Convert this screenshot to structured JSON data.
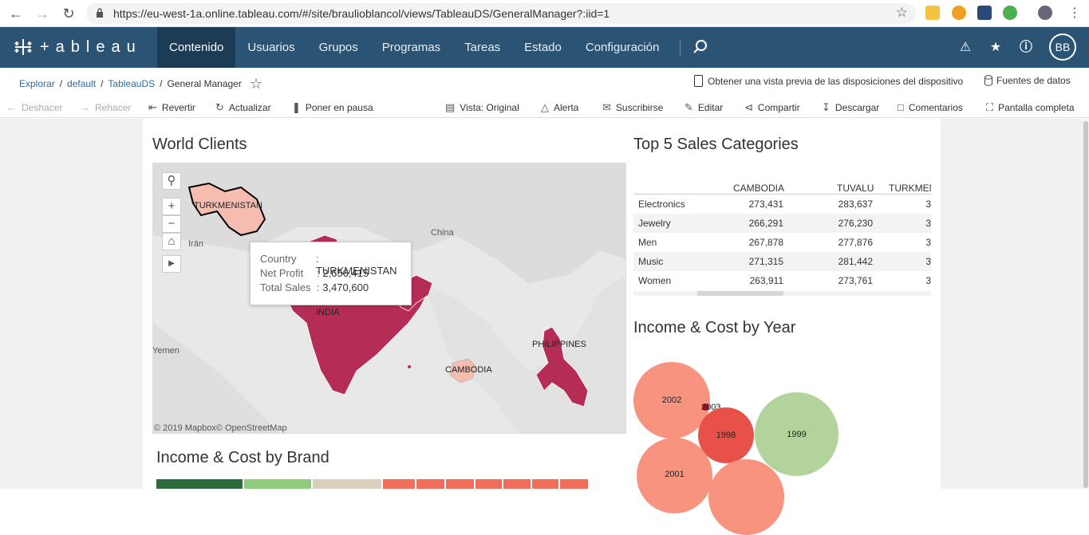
{
  "browser": {
    "url": "https://eu-west-1a.online.tableau.com/#/site/braulioblancol/views/TableauDS/GeneralManager?:iid=1"
  },
  "header": {
    "logo_text": "+ableau",
    "menu": [
      {
        "label": "Contenido"
      },
      {
        "label": "Usuarios"
      },
      {
        "label": "Grupos"
      },
      {
        "label": "Programas"
      },
      {
        "label": "Tareas"
      },
      {
        "label": "Estado"
      },
      {
        "label": "Configuración"
      }
    ],
    "avatar": "BB"
  },
  "breadcrumb": {
    "items": [
      "Explorar",
      "default",
      "TableauDS"
    ],
    "current": "General Manager"
  },
  "preview_label": "Obtener una vista previa de las disposiciones del dispositivo",
  "datasources_label": "Fuentes de datos",
  "toolbar": {
    "undo": "Deshacer",
    "redo": "Rehacer",
    "revert": "Revertir",
    "refresh": "Actualizar",
    "pause": "Poner en pausa",
    "view": "Vista: Original",
    "alert": "Alerta",
    "subscribe": "Suscribirse",
    "edit": "Editar",
    "share": "Compartir",
    "download": "Descargar",
    "comments": "Comentarios",
    "fullscreen": "Pantalla completa"
  },
  "map": {
    "title": "World Clients",
    "labels": {
      "turkmenistan": "TURKMENISTAN",
      "iran": "Irán",
      "china": "China",
      "india": "INDIA",
      "yemen": "Yemen",
      "cambodia": "CAMBODIA",
      "philippines": "PHILIPPINES"
    },
    "tooltip": {
      "country_k": "Country",
      "country_v": "TURKMENISTAN",
      "profit_k": "Net Profit",
      "profit_v": "2,656,415",
      "sales_k": "Total Sales",
      "sales_v": "3,470,600"
    },
    "attribution": "© 2019 Mapbox© OpenStreetMap"
  },
  "top5": {
    "title": "Top 5 Sales Categories",
    "columns": [
      "CAMBODIA",
      "TUVALU",
      "TURKMEN"
    ],
    "rows": [
      {
        "cat": "Electronics",
        "c1": "273,431",
        "c2": "283,637",
        "c3": "3"
      },
      {
        "cat": "Jewelry",
        "c1": "266,291",
        "c2": "276,230",
        "c3": "3"
      },
      {
        "cat": "Men",
        "c1": "267,878",
        "c2": "277,876",
        "c3": "3"
      },
      {
        "cat": "Music",
        "c1": "271,315",
        "c2": "281,442",
        "c3": "3"
      },
      {
        "cat": "Women",
        "c1": "263,911",
        "c2": "273,761",
        "c3": "3"
      }
    ]
  },
  "income_year": {
    "title": "Income & Cost by Year",
    "bubbles": [
      "2002",
      "2003",
      "1998",
      "1999",
      "2001"
    ]
  },
  "income_brand": {
    "title": "Income & Cost by Brand"
  },
  "colors": {
    "header": "#2b5373",
    "active": "#1c3b55",
    "map_dark": "#b52d55",
    "map_light": "#f7bcb0"
  }
}
